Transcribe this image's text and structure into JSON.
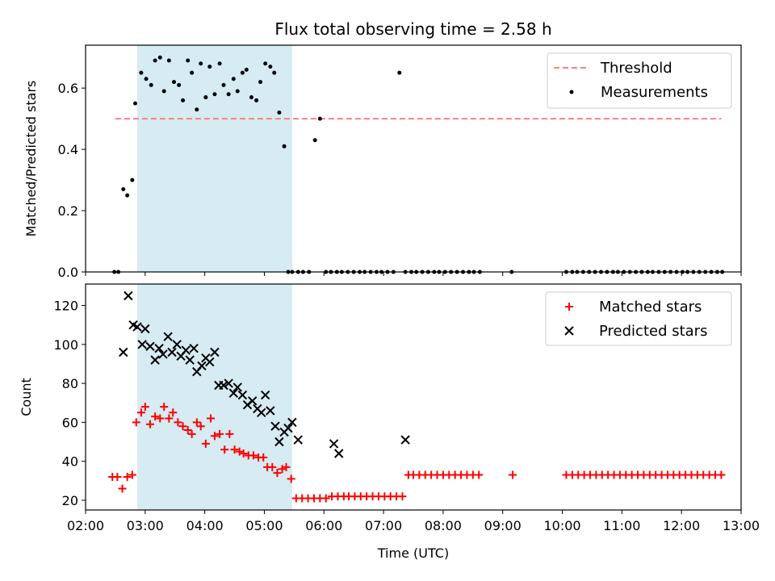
{
  "title": "Flux total observing time = 2.58 h",
  "xlabel": "Time (UTC)",
  "colors": {
    "threshold": "#ff7f7f",
    "span": "#add8e6",
    "measurement": "#000000",
    "matched": "#ff0000",
    "predicted": "#000000"
  },
  "chart_data": [
    {
      "type": "scatter",
      "ylabel": "Matched/Predicted stars",
      "xlim": [
        "02:00",
        "13:00"
      ],
      "ylim": [
        0,
        0.74
      ],
      "yticks": [
        "0.0",
        "0.2",
        "0.4",
        "0.6"
      ],
      "shaded_span": [
        "02:52",
        "05:28"
      ],
      "legend_position": "upper right",
      "threshold": {
        "name": "Threshold",
        "value": 0.5,
        "x_range": [
          "02:30",
          "12:40"
        ]
      },
      "series": [
        {
          "name": "Measurements",
          "x": [
            "02:29",
            "02:33",
            "02:38",
            "02:42",
            "02:47",
            "02:50",
            "02:56",
            "03:01",
            "03:06",
            "03:10",
            "03:15",
            "03:19",
            "03:24",
            "03:29",
            "03:34",
            "03:38",
            "03:43",
            "03:47",
            "03:52",
            "03:56",
            "04:01",
            "04:05",
            "04:10",
            "04:15",
            "04:19",
            "04:24",
            "04:29",
            "04:33",
            "04:38",
            "04:42",
            "04:47",
            "04:52",
            "04:56",
            "05:01",
            "05:06",
            "05:10",
            "05:15",
            "05:20",
            "05:24",
            "05:28",
            "05:34",
            "05:39",
            "05:45",
            "05:51",
            "05:56",
            "06:02",
            "06:07",
            "06:13",
            "06:18",
            "06:24",
            "06:30",
            "06:36",
            "06:41",
            "06:47",
            "06:53",
            "06:58",
            "07:04",
            "07:10",
            "07:16",
            "07:22",
            "07:28",
            "07:33",
            "07:39",
            "07:45",
            "07:51",
            "07:56",
            "08:02",
            "08:08",
            "08:14",
            "08:20",
            "08:26",
            "08:31",
            "08:37",
            "09:09",
            "10:04",
            "10:10",
            "10:15",
            "10:21",
            "10:27",
            "10:33",
            "10:39",
            "10:45",
            "10:51",
            "10:56",
            "11:02",
            "11:08",
            "11:14",
            "11:20",
            "11:26",
            "11:31",
            "11:37",
            "11:43",
            "11:49",
            "11:55",
            "12:01",
            "12:06",
            "12:12",
            "12:18",
            "12:24",
            "12:30",
            "12:36",
            "12:41"
          ],
          "y": [
            0,
            0,
            0.27,
            0.25,
            0.3,
            0.55,
            0.65,
            0.63,
            0.61,
            0.69,
            0.7,
            0.59,
            0.69,
            0.62,
            0.61,
            0.56,
            0.69,
            0.65,
            0.53,
            0.68,
            0.57,
            0.67,
            0.58,
            0.68,
            0.61,
            0.58,
            0.63,
            0.59,
            0.65,
            0.66,
            0.57,
            0.56,
            0.62,
            0.68,
            0.67,
            0.65,
            0.52,
            0.41,
            0,
            0,
            0,
            0,
            0,
            0.43,
            0.5,
            0,
            0,
            0,
            0,
            0,
            0,
            0,
            0,
            0,
            0,
            0,
            0,
            0,
            0.65,
            0,
            0,
            0,
            0,
            0,
            0,
            0,
            0,
            0,
            0,
            0,
            0,
            0,
            0,
            0,
            0,
            0,
            0,
            0,
            0,
            0,
            0,
            0,
            0,
            0,
            0,
            0,
            0,
            0,
            0,
            0,
            0,
            0,
            0,
            0,
            0,
            0,
            0,
            0,
            0,
            0,
            0,
            0
          ]
        }
      ]
    },
    {
      "type": "scatter",
      "ylabel": "Count",
      "xlim": [
        "02:00",
        "13:00"
      ],
      "ylim": [
        15,
        131
      ],
      "yticks": [
        "20",
        "40",
        "60",
        "80",
        "100",
        "120"
      ],
      "xticks": [
        "02:00",
        "03:00",
        "04:00",
        "05:00",
        "06:00",
        "07:00",
        "08:00",
        "09:00",
        "10:00",
        "11:00",
        "12:00",
        "13:00"
      ],
      "shaded_span": [
        "02:52",
        "05:28"
      ],
      "legend_position": "upper right",
      "series": [
        {
          "name": "Matched stars",
          "marker": "+",
          "x": [
            "02:27",
            "02:32",
            "02:37",
            "02:42",
            "02:47",
            "02:51",
            "02:56",
            "03:00",
            "03:05",
            "03:10",
            "03:15",
            "03:19",
            "03:24",
            "03:28",
            "03:33",
            "03:38",
            "03:43",
            "03:47",
            "03:52",
            "03:56",
            "04:01",
            "04:06",
            "04:10",
            "04:15",
            "04:20",
            "04:25",
            "04:30",
            "04:35",
            "04:39",
            "04:44",
            "04:49",
            "04:54",
            "04:59",
            "05:03",
            "05:08",
            "05:13",
            "05:18",
            "05:22",
            "05:27",
            "05:32",
            "05:38",
            "05:44",
            "05:50",
            "05:56",
            "06:02",
            "06:08",
            "06:14",
            "06:20",
            "06:25",
            "06:31",
            "06:37",
            "06:43",
            "06:49",
            "06:55",
            "07:01",
            "07:07",
            "07:13",
            "07:19",
            "07:25",
            "07:30",
            "07:36",
            "07:42",
            "07:48",
            "07:54",
            "08:00",
            "08:06",
            "08:12",
            "08:18",
            "08:24",
            "08:30",
            "08:36",
            "09:10",
            "10:04",
            "10:10",
            "10:16",
            "10:22",
            "10:28",
            "10:34",
            "10:40",
            "10:46",
            "10:52",
            "10:58",
            "11:04",
            "11:10",
            "11:16",
            "11:22",
            "11:28",
            "11:34",
            "11:40",
            "11:46",
            "11:52",
            "11:58",
            "12:04",
            "12:10",
            "12:16",
            "12:22",
            "12:28",
            "12:34",
            "12:40"
          ],
          "y": [
            32,
            32,
            26,
            32,
            33,
            60,
            65,
            68,
            59,
            63,
            62,
            68,
            62,
            65,
            60,
            58,
            56,
            54,
            60,
            58,
            49,
            62,
            53,
            54,
            46,
            54,
            46,
            45,
            44,
            43,
            43,
            42,
            42,
            37,
            37,
            34,
            36,
            37,
            31,
            21,
            21,
            21,
            21,
            21,
            21,
            22,
            22,
            22,
            22,
            22,
            22,
            22,
            22,
            22,
            22,
            22,
            22,
            22,
            33,
            33,
            33,
            33,
            33,
            33,
            33,
            33,
            33,
            33,
            33,
            33,
            33,
            33,
            33,
            33,
            33,
            33,
            33,
            33,
            33,
            33,
            33,
            33,
            33,
            33,
            33,
            33,
            33,
            33,
            33,
            33,
            33,
            33,
            33,
            33,
            33,
            33,
            33,
            33,
            33
          ]
        },
        {
          "name": "Predicted stars",
          "marker": "x",
          "x": [
            "02:38",
            "02:43",
            "02:48",
            "02:52",
            "02:57",
            "03:00",
            "03:05",
            "03:10",
            "03:14",
            "03:18",
            "03:23",
            "03:27",
            "03:32",
            "03:36",
            "03:41",
            "03:45",
            "03:49",
            "03:52",
            "03:57",
            "04:01",
            "04:05",
            "04:10",
            "04:14",
            "04:19",
            "04:24",
            "04:29",
            "04:33",
            "04:38",
            "04:43",
            "04:48",
            "04:53",
            "04:57",
            "05:01",
            "05:06",
            "05:11",
            "05:15",
            "05:20",
            "05:24",
            "05:28",
            "05:34",
            "06:10",
            "06:15",
            "07:22"
          ],
          "y": [
            96,
            125,
            110,
            109,
            100,
            108,
            99,
            92,
            98,
            95,
            104,
            96,
            100,
            94,
            97,
            92,
            98,
            86,
            89,
            93,
            91,
            96,
            79,
            79,
            80,
            75,
            78,
            74,
            69,
            71,
            67,
            65,
            74,
            66,
            58,
            50,
            55,
            57,
            60,
            51,
            49,
            44,
            51
          ]
        }
      ]
    }
  ]
}
